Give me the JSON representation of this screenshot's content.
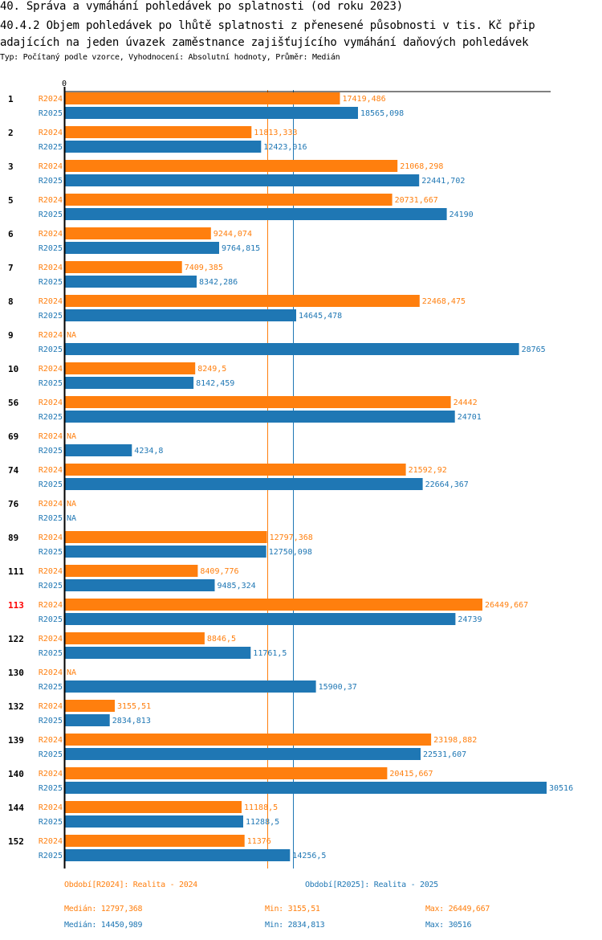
{
  "header": {
    "title_line1": "40. Správa a vymáhání pohledávek po splatnosti (od roku 2023)",
    "title_line2": "40.4.2 Objem pohledávek po lhůtě splatnosti z přenesené působnosti v tis. Kč přip",
    "title_line3": "adajících na jeden úvazek zaměstnance zajišťujícího vymáhání daňových pohledávek",
    "subtitle": "Typ: Počítaný podle vzorce, Vyhodnocení: Absolutní hodnoty, Průměr: Medián"
  },
  "colors": {
    "r2024": "#ff7f0e",
    "r2025": "#1f77b4",
    "highlight": "#ff0000",
    "axis": "#000000"
  },
  "chart_data": {
    "type": "bar",
    "orientation": "horizontal",
    "title": "40.4.2 Objem pohledávek po lhůtě splatnosti z přenesené působnosti v tis. Kč připadajících na jeden úvazek zaměstnance zajišťujícího vymáhání daňových pohledávek",
    "xlabel": "",
    "ylabel": "",
    "x_tick_labels": [
      "0"
    ],
    "xlim": [
      0,
      30516
    ],
    "grid": false,
    "categories": [
      "1",
      "2",
      "3",
      "5",
      "6",
      "7",
      "8",
      "9",
      "10",
      "56",
      "69",
      "74",
      "76",
      "89",
      "111",
      "113",
      "122",
      "130",
      "132",
      "139",
      "140",
      "144",
      "152"
    ],
    "highlighted_category": "113",
    "series": [
      {
        "name": "R2024",
        "label": "R2024",
        "values": [
          17419.486,
          11813.333,
          21068.298,
          20731.667,
          9244.074,
          7409.385,
          22468.475,
          null,
          8249.5,
          24442,
          null,
          21592.92,
          null,
          12797.368,
          8409.776,
          26449.667,
          8846.5,
          null,
          3155.51,
          23198.882,
          20415.667,
          11188.5,
          11376
        ],
        "value_labels": [
          "17419,486",
          "11813,333",
          "21068,298",
          "20731,667",
          "9244,074",
          "7409,385",
          "22468,475",
          "NA",
          "8249,5",
          "24442",
          "NA",
          "21592,92",
          "NA",
          "12797,368",
          "8409,776",
          "26449,667",
          "8846,5",
          "NA",
          "3155,51",
          "23198,882",
          "20415,667",
          "11188,5",
          "11376"
        ],
        "median": 12797.368
      },
      {
        "name": "R2025",
        "label": "R2025",
        "values": [
          18565.098,
          12423.016,
          22441.702,
          24190,
          9764.815,
          8342.286,
          14645.478,
          28765,
          8142.459,
          24701,
          4234.8,
          22664.367,
          null,
          12750.098,
          9485.324,
          24739,
          11761.5,
          15900.37,
          2834.813,
          22531.607,
          30516,
          11288.5,
          14256.5
        ],
        "value_labels": [
          "18565,098",
          "12423,016",
          "22441,702",
          "24190",
          "9764,815",
          "8342,286",
          "14645,478",
          "28765",
          "8142,459",
          "24701",
          "4234,8",
          "22664,367",
          "NA",
          "12750,098",
          "9485,324",
          "24739",
          "11761,5",
          "15900,37",
          "2834,813",
          "22531,607",
          "30516",
          "11288,5",
          "14256,5"
        ],
        "median": 14450.989
      }
    ],
    "legend": {
      "placement": "bottom",
      "items": [
        {
          "series": "R2024",
          "text": "Období[R2024]: Realita - 2024"
        },
        {
          "series": "R2025",
          "text": "Období[R2025]: Realita - 2025"
        }
      ]
    },
    "stats": [
      {
        "series": "R2024",
        "median": "Medián: 12797,368",
        "min": "Min: 3155,51",
        "max": "Max: 26449,667"
      },
      {
        "series": "R2025",
        "median": "Medián: 14450,989",
        "min": "Min: 2834,813",
        "max": "Max: 30516"
      }
    ]
  }
}
